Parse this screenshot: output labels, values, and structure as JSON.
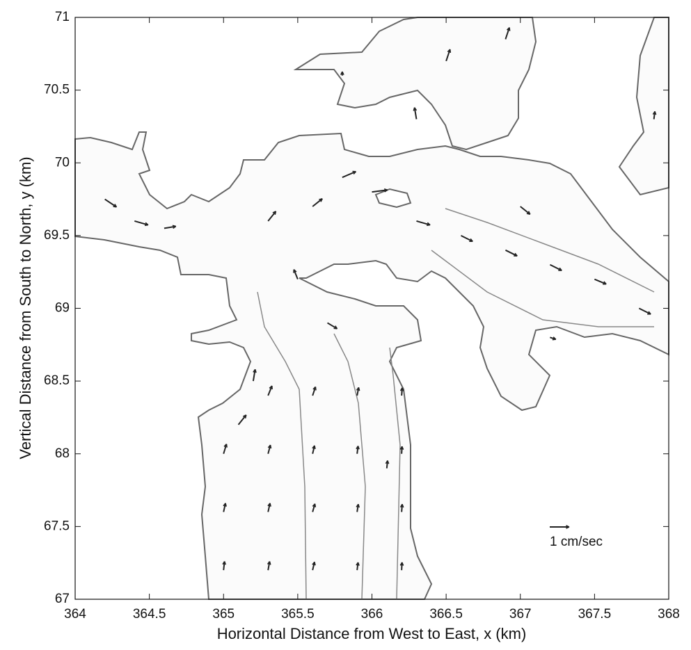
{
  "chart_data": {
    "type": "quiver",
    "xlabel": "Horizontal Distance from West to East, x (km)",
    "ylabel": "Vertical Distance from South to North, y (km)",
    "xlim": [
      364,
      368
    ],
    "ylim": [
      67,
      71
    ],
    "xticks": [
      364,
      364.5,
      365,
      365.5,
      366,
      366.5,
      367,
      367.5,
      368
    ],
    "yticks": [
      67,
      67.5,
      68,
      68.5,
      69,
      69.5,
      70,
      70.5,
      71
    ],
    "color": "#222222",
    "scale_value": 1,
    "scale_label": "1 cm/sec",
    "x": [
      365.0,
      365.3,
      365.6,
      365.9,
      366.2,
      365.0,
      365.3,
      365.6,
      365.9,
      366.2,
      365.0,
      365.3,
      365.6,
      365.9,
      366.2,
      365.3,
      365.6,
      365.9,
      366.2,
      366.1,
      364.2,
      364.4,
      364.6,
      365.3,
      365.6,
      365.8,
      366.0,
      366.3,
      366.6,
      366.9,
      367.2,
      367.5,
      367.8,
      367.2,
      367.0,
      365.5,
      365.7,
      365.2,
      365.1,
      366.3,
      366.5,
      366.9,
      367.9,
      365.8
    ],
    "y": [
      67.2,
      67.2,
      67.2,
      67.2,
      67.2,
      67.6,
      67.6,
      67.6,
      67.6,
      67.6,
      68.0,
      68.0,
      68.0,
      68.0,
      68.0,
      68.4,
      68.4,
      68.4,
      68.4,
      67.9,
      69.75,
      69.6,
      69.55,
      69.6,
      69.7,
      69.9,
      69.8,
      69.6,
      69.5,
      69.4,
      69.3,
      69.2,
      69.0,
      68.8,
      69.7,
      69.2,
      68.9,
      68.5,
      68.2,
      70.3,
      70.7,
      70.85,
      70.3,
      70.6
    ],
    "u": [
      0.05,
      0.08,
      0.1,
      0.05,
      0.02,
      0.1,
      0.1,
      0.12,
      0.06,
      0.03,
      0.15,
      0.12,
      0.1,
      0.05,
      0.02,
      0.2,
      0.15,
      0.08,
      0.03,
      0.04,
      0.6,
      0.7,
      0.6,
      0.4,
      0.5,
      0.7,
      0.8,
      0.7,
      0.6,
      0.6,
      0.6,
      0.6,
      0.6,
      0.3,
      0.5,
      -0.2,
      0.5,
      0.1,
      0.4,
      -0.1,
      0.2,
      0.2,
      0.05,
      0.0
    ],
    "v": [
      0.45,
      0.45,
      0.42,
      0.4,
      0.4,
      0.45,
      0.45,
      0.42,
      0.4,
      0.4,
      0.5,
      0.45,
      0.42,
      0.4,
      0.38,
      0.5,
      0.45,
      0.42,
      0.4,
      0.4,
      -0.4,
      -0.2,
      0.1,
      0.5,
      0.4,
      0.3,
      0.1,
      -0.2,
      -0.3,
      -0.3,
      -0.3,
      -0.25,
      -0.3,
      -0.1,
      -0.4,
      0.5,
      -0.3,
      0.6,
      0.5,
      0.6,
      0.6,
      0.6,
      0.4,
      0.2
    ]
  }
}
